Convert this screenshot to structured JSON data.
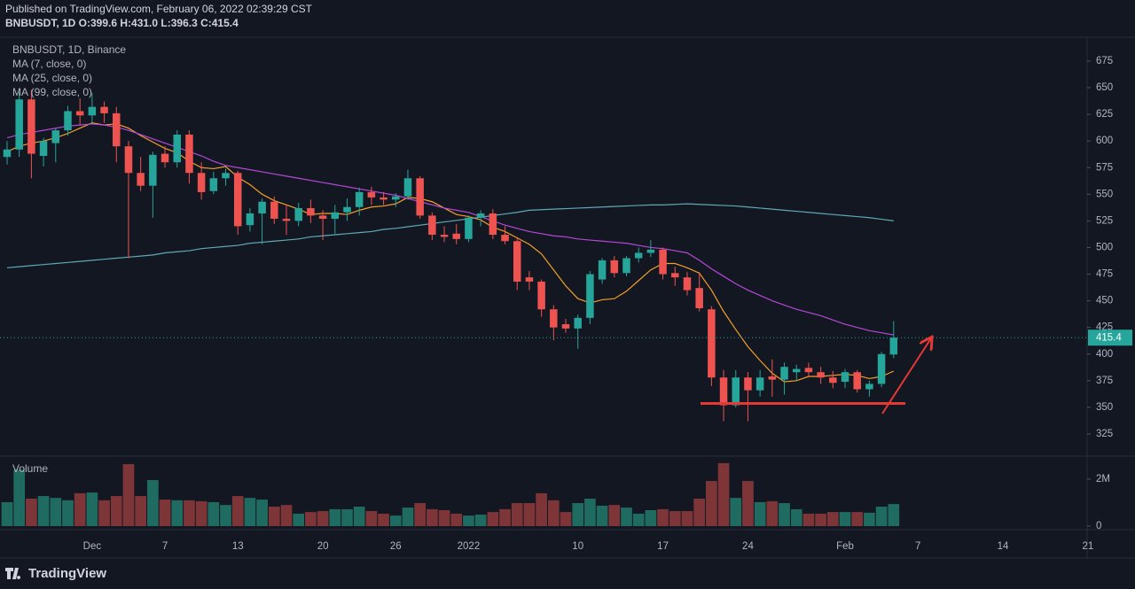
{
  "chart_data": {
    "type": "candlestick",
    "published": "Published on TradingView.com, February 06, 2022 02:39:29 CST",
    "header": "BNBUSDT, 1D O:399.6 H:431.0 L:396.3 C:415.4",
    "title": "BNBUSDT, 1D, Binance",
    "brand": "TradingView",
    "up_color": "#26a69a",
    "down_color": "#ef5350",
    "ylim": [
      304.2,
      697.4
    ],
    "yticks": [
      325,
      350,
      375,
      400,
      425,
      450,
      475,
      500,
      525,
      550,
      575,
      600,
      625,
      650,
      675
    ],
    "categories": [
      null,
      null,
      null,
      null,
      null,
      null,
      null,
      "Dec",
      null,
      null,
      null,
      null,
      null,
      "7",
      null,
      null,
      null,
      null,
      null,
      "13",
      null,
      null,
      null,
      null,
      null,
      null,
      "20",
      null,
      null,
      null,
      null,
      null,
      "26",
      null,
      null,
      null,
      null,
      null,
      "2022",
      null,
      null,
      null,
      null,
      null,
      null,
      null,
      null,
      "10",
      null,
      null,
      null,
      null,
      null,
      null,
      "17",
      null,
      null,
      null,
      null,
      null,
      null,
      "24",
      null,
      null,
      null,
      null,
      null,
      null,
      null,
      "Feb",
      null,
      null,
      null,
      null,
      null,
      "7",
      null,
      null,
      null,
      null,
      null,
      null,
      "14",
      null,
      null,
      null,
      null,
      null,
      null,
      "21"
    ],
    "open": [
      585,
      592,
      639,
      586,
      598,
      610,
      628,
      624,
      632,
      626,
      595,
      570,
      558,
      588,
      580,
      606,
      570,
      553,
      565,
      570,
      521,
      532,
      543,
      527,
      525,
      537,
      530,
      527,
      533,
      538,
      552,
      547,
      545,
      548,
      565,
      530,
      512,
      513,
      508,
      528,
      532,
      512,
      506,
      472,
      468,
      442,
      428,
      424,
      434,
      470,
      488,
      476,
      490,
      495,
      498,
      476,
      472,
      462,
      442,
      378,
      352,
      378,
      366,
      379,
      376,
      383,
      387,
      383,
      378,
      374,
      383,
      367,
      372,
      399.6,
      null,
      null,
      null,
      null,
      null,
      null,
      null,
      null,
      null,
      null,
      null,
      null,
      null,
      null,
      null,
      null
    ],
    "high": [
      600,
      646,
      648,
      603,
      612,
      633,
      640,
      645,
      637,
      632,
      600,
      585,
      590,
      595,
      610,
      610,
      580,
      571,
      574,
      572,
      537,
      546,
      548,
      540,
      542,
      545,
      535,
      540,
      546,
      556,
      557,
      552,
      551,
      573,
      567,
      533,
      520,
      522,
      530,
      535,
      536,
      520,
      510,
      478,
      470,
      446,
      433,
      437,
      478,
      490,
      492,
      492,
      500,
      507,
      500,
      482,
      477,
      477,
      445,
      385,
      385,
      383,
      385,
      395,
      392,
      390,
      392,
      388,
      384,
      386,
      385,
      375,
      402,
      431,
      null,
      null,
      null,
      null,
      null,
      null,
      null,
      null,
      null,
      null,
      null,
      null,
      null,
      null,
      null,
      null
    ],
    "low": [
      578,
      585,
      565,
      576,
      580,
      605,
      615,
      616,
      617,
      580,
      490,
      553,
      528,
      575,
      575,
      560,
      545,
      550,
      558,
      512,
      515,
      503,
      522,
      512,
      520,
      523,
      507,
      513,
      525,
      530,
      540,
      540,
      538,
      545,
      527,
      507,
      505,
      503,
      505,
      520,
      508,
      503,
      460,
      460,
      435,
      413,
      420,
      405,
      428,
      466,
      472,
      473,
      486,
      491,
      470,
      464,
      455,
      440,
      370,
      337,
      350,
      337,
      360,
      360,
      362,
      375,
      378,
      372,
      368,
      368,
      364,
      360,
      369,
      396.3,
      null,
      null,
      null,
      null,
      null,
      null,
      null,
      null,
      null,
      null,
      null,
      null,
      null,
      null,
      null,
      null
    ],
    "close": [
      592,
      639,
      588,
      600,
      610,
      628,
      624,
      632,
      626,
      595,
      570,
      558,
      587,
      580,
      606,
      570,
      552,
      565,
      570,
      520,
      532,
      543,
      527,
      525,
      537,
      530,
      527,
      533,
      538,
      552,
      547,
      545,
      548,
      565,
      530,
      512,
      510,
      508,
      528,
      532,
      512,
      506,
      468,
      468,
      442,
      425,
      424,
      434,
      475,
      488,
      476,
      490,
      495,
      498,
      475,
      472,
      460,
      443,
      378,
      352,
      378,
      366,
      378,
      376,
      388,
      386,
      383,
      378,
      373,
      383,
      367,
      372,
      400,
      415.4,
      null,
      null,
      null,
      null,
      null,
      null,
      null,
      null,
      null,
      null,
      null,
      null,
      null,
      null,
      null,
      null
    ],
    "series": [
      {
        "name": "MA (7, close, 0)",
        "color": "#f59e2a",
        "values": [
          590,
          595,
          598,
          600,
          603,
          607,
          612,
          617,
          615,
          616,
          612,
          605,
          599,
          593,
          589,
          581,
          575,
          574,
          576,
          566,
          559,
          550,
          544,
          540,
          536,
          531,
          532,
          532,
          531,
          535,
          538,
          539,
          541,
          547,
          546,
          543,
          537,
          531,
          529,
          526,
          519,
          515,
          509,
          503,
          494,
          479,
          464,
          452,
          448,
          451,
          452,
          459,
          469,
          479,
          485,
          485,
          481,
          476,
          460,
          440,
          423,
          407,
          394,
          382,
          374,
          375,
          379,
          379,
          380,
          381,
          380,
          377,
          379,
          384,
          null,
          null,
          null,
          null,
          null,
          null,
          null,
          null,
          null,
          null,
          null,
          null,
          null,
          null,
          null,
          null
        ]
      },
      {
        "name": "MA (25, close, 0)",
        "color": "#b548d8",
        "values": [
          603,
          606,
          608,
          610,
          612,
          614,
          615,
          616,
          615,
          613,
          610,
          606,
          602,
          598,
          594,
          590,
          586,
          581,
          577,
          575,
          573,
          571,
          569,
          567,
          565,
          563,
          561,
          559,
          557,
          555,
          553,
          551,
          549,
          546,
          543,
          540,
          537,
          535,
          533,
          529,
          525,
          521,
          518,
          515,
          513,
          511,
          510,
          508,
          507,
          506,
          505,
          504,
          502,
          500,
          499,
          497,
          495,
          488,
          480,
          473,
          466,
          460,
          455,
          450,
          446,
          442,
          439,
          436,
          432,
          428,
          425,
          422,
          420,
          418,
          null,
          null,
          null,
          null,
          null,
          null,
          null,
          null,
          null,
          null,
          null,
          null,
          null,
          null,
          null,
          null
        ]
      },
      {
        "name": "MA (99, close, 0)",
        "color": "#5fa9b5",
        "values": [
          481,
          482,
          483,
          484,
          485,
          486,
          487,
          488,
          489,
          490,
          491,
          492,
          493,
          495,
          496,
          497,
          499,
          500,
          501,
          502,
          504,
          505,
          506,
          507,
          508,
          510,
          511,
          512,
          513,
          514,
          515,
          517,
          518,
          519.5,
          521,
          522.5,
          524,
          525.5,
          527,
          528.5,
          530,
          531.5,
          533,
          535,
          535.5,
          536,
          536.5,
          537,
          537.5,
          538,
          538.5,
          539,
          539.5,
          540,
          540,
          540.5,
          541,
          540.5,
          540,
          539.5,
          539,
          538,
          537,
          536,
          535,
          534,
          533,
          532,
          531,
          530,
          529,
          528,
          526.5,
          525,
          null,
          null,
          null,
          null,
          null,
          null,
          null,
          null,
          null,
          null,
          null,
          null,
          null,
          null,
          null,
          null
        ]
      }
    ],
    "volume": {
      "label": "Volume",
      "up_color": "#1f6a61",
      "down_color": "#7d3538",
      "ylim": [
        -150000,
        2940000
      ],
      "yticks": [
        0,
        {
          "value": 2000000,
          "label": "2M"
        }
      ],
      "values": [
        1020000,
        2400000,
        1170000,
        1280000,
        1200000,
        1100000,
        1400000,
        1430000,
        1100000,
        1280000,
        2640000,
        1280000,
        1960000,
        1130000,
        1100000,
        1100000,
        1060000,
        1020000,
        900000,
        1280000,
        1200000,
        1130000,
        830000,
        900000,
        530000,
        600000,
        640000,
        720000,
        720000,
        830000,
        640000,
        530000,
        450000,
        790000,
        980000,
        720000,
        680000,
        530000,
        450000,
        490000,
        600000,
        720000,
        980000,
        980000,
        1400000,
        1100000,
        600000,
        980000,
        1170000,
        870000,
        900000,
        790000,
        530000,
        680000,
        720000,
        640000,
        640000,
        1170000,
        1920000,
        2680000,
        1200000,
        1920000,
        1020000,
        1060000,
        980000,
        720000,
        530000,
        530000,
        600000,
        600000,
        600000,
        570000,
        830000,
        940000,
        null,
        null,
        null,
        null,
        null,
        null,
        null,
        null,
        null,
        null,
        null,
        null,
        null,
        null,
        null,
        null
      ]
    }
  }
}
